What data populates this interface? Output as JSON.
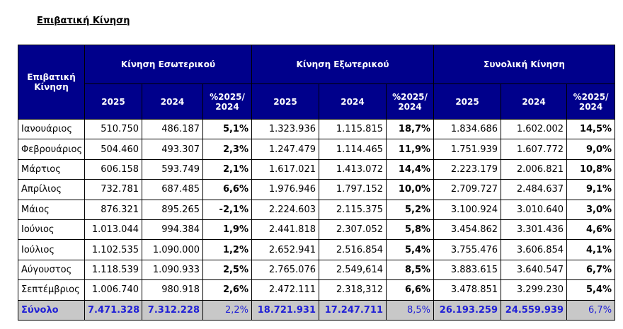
{
  "title": "Επιβατική Κίνηση",
  "table": {
    "group_headers": [
      "Επιβατική Κίνηση",
      "Κίνηση Εσωτερικού",
      "Κίνηση Εξωτερικού",
      "Συνολική Κίνηση"
    ],
    "sub_headers": [
      "2025",
      "2024",
      "%2025/\n2024",
      "2025",
      "2024",
      "%2025/\n2024",
      "2025",
      "2024",
      "%2025/\n2024"
    ],
    "rows": [
      [
        "Ιανουάριος",
        "510.750",
        "486.187",
        "5,1%",
        "1.323.936",
        "1.115.815",
        "18,7%",
        "1.834.686",
        "1.602.002",
        "14,5%"
      ],
      [
        "Φεβρουάριος",
        "504.460",
        "493.307",
        "2,3%",
        "1.247.479",
        "1.114.465",
        "11,9%",
        "1.751.939",
        "1.607.772",
        "9,0%"
      ],
      [
        "Μάρτιος",
        "606.158",
        "593.749",
        "2,1%",
        "1.617.021",
        "1.413.072",
        "14,4%",
        "2.223.179",
        "2.006.821",
        "10,8%"
      ],
      [
        "Απρίλιος",
        "732.781",
        "687.485",
        "6,6%",
        "1.976.946",
        "1.797.152",
        "10,0%",
        "2.709.727",
        "2.484.637",
        "9,1%"
      ],
      [
        "Μάιος",
        "876.321",
        "895.265",
        "-2,1%",
        "2.224.603",
        "2.115.375",
        "5,2%",
        "3.100.924",
        "3.010.640",
        "3,0%"
      ],
      [
        "Ιούνιος",
        "1.013.044",
        "994.384",
        "1,9%",
        "2.441.818",
        "2.307.052",
        "5,8%",
        "3.454.862",
        "3.301.436",
        "4,6%"
      ],
      [
        "Ιούλιος",
        "1.102.535",
        "1.090.000",
        "1,2%",
        "2.652.941",
        "2.516.854",
        "5,4%",
        "3.755.476",
        "3.606.854",
        "4,1%"
      ],
      [
        "Αύγουστος",
        "1.118.539",
        "1.090.933",
        "2,5%",
        "2.765.076",
        "2.549,614",
        "8,5%",
        "3.883.615",
        "3.640.547",
        "6,7%"
      ],
      [
        "Σεπτέμβριος",
        "1.006.740",
        "980.918",
        "2,6%",
        "2.472.111",
        "2.318,312",
        "6,6%",
        "3.478.851",
        "3.299.230",
        "5,4%"
      ]
    ],
    "total": [
      "Σύνολο",
      "7.471.328",
      "7.312.228",
      "2,2%",
      "18.721.931",
      "17.247.711",
      "8,5%",
      "26.193.259",
      "24.559.939",
      "6,7%"
    ]
  }
}
